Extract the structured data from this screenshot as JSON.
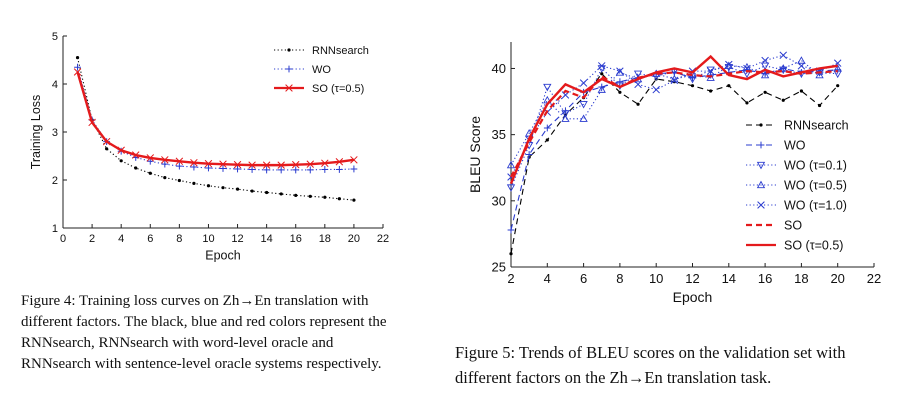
{
  "chart_data": [
    {
      "type": "line",
      "xlabel": "Epoch",
      "ylabel": "Training Loss",
      "xlim": [
        0,
        22
      ],
      "ylim": [
        1,
        5
      ],
      "xticks": [
        "0",
        "2",
        "4",
        "6",
        "8",
        "10",
        "12",
        "14",
        "16",
        "18",
        "20",
        "22"
      ],
      "yticks": [
        "1",
        "2",
        "3",
        "4",
        "5"
      ],
      "legend_position": "top-right",
      "x": [
        1,
        2,
        3,
        4,
        5,
        6,
        7,
        8,
        9,
        10,
        11,
        12,
        13,
        14,
        15,
        16,
        17,
        18,
        19,
        20
      ],
      "series": [
        {
          "name": "RNNsearch",
          "color": "#000000",
          "style": "dotted",
          "marker": "dot",
          "values": [
            4.55,
            3.25,
            2.65,
            2.4,
            2.25,
            2.14,
            2.05,
            1.99,
            1.93,
            1.88,
            1.84,
            1.81,
            1.77,
            1.74,
            1.71,
            1.68,
            1.66,
            1.64,
            1.61,
            1.58
          ]
        },
        {
          "name": "WO",
          "color": "#2b3ccf",
          "style": "dotted",
          "marker": "plus",
          "values": [
            4.35,
            3.25,
            2.8,
            2.6,
            2.47,
            2.39,
            2.33,
            2.29,
            2.27,
            2.25,
            2.24,
            2.23,
            2.22,
            2.21,
            2.21,
            2.21,
            2.21,
            2.22,
            2.22,
            2.23
          ]
        },
        {
          "name": "SO (τ=0.5)",
          "color": "#e41a1c",
          "style": "solid",
          "marker": "x",
          "values": [
            4.25,
            3.2,
            2.8,
            2.62,
            2.52,
            2.46,
            2.42,
            2.39,
            2.36,
            2.34,
            2.33,
            2.32,
            2.31,
            2.31,
            2.31,
            2.32,
            2.33,
            2.35,
            2.38,
            2.42
          ]
        }
      ]
    },
    {
      "type": "line",
      "xlabel": "Epoch",
      "ylabel": "BLEU Score",
      "xlim": [
        2,
        22
      ],
      "ylim": [
        25,
        42
      ],
      "xticks": [
        "2",
        "4",
        "6",
        "8",
        "10",
        "12",
        "14",
        "16",
        "18",
        "20",
        "22"
      ],
      "yticks": [
        "25",
        "30",
        "35",
        "40"
      ],
      "legend_position": "lower-right",
      "x": [
        2,
        3,
        4,
        5,
        6,
        7,
        8,
        9,
        10,
        11,
        12,
        13,
        14,
        15,
        16,
        17,
        18,
        19,
        20
      ],
      "series": [
        {
          "name": "RNNsearch",
          "color": "#000000",
          "style": "dashed",
          "marker": "dot",
          "values": [
            26.0,
            33.3,
            34.6,
            36.5,
            37.8,
            39.6,
            38.2,
            37.3,
            39.2,
            39.0,
            38.7,
            38.3,
            38.7,
            37.4,
            38.2,
            37.6,
            38.3,
            37.2,
            38.7
          ]
        },
        {
          "name": "WO",
          "color": "#2b3ccf",
          "style": "dashed",
          "marker": "plus",
          "values": [
            27.8,
            33.5,
            35.5,
            36.8,
            38.2,
            38.6,
            39.0,
            39.3,
            39.6,
            39.7,
            39.3,
            39.5,
            39.7,
            39.9,
            39.6,
            40.0,
            39.7,
            39.8,
            39.9
          ]
        },
        {
          "name": "WO (τ=0.1)",
          "color": "#2b3ccf",
          "style": "dotted",
          "marker": "triangle-down",
          "values": [
            31.0,
            34.2,
            38.6,
            36.6,
            37.3,
            40.0,
            38.7,
            39.6,
            39.4,
            39.8,
            39.2,
            39.9,
            40.1,
            39.6,
            40.2,
            39.9,
            39.6,
            39.7,
            39.6
          ]
        },
        {
          "name": "WO (τ=0.5)",
          "color": "#2b3ccf",
          "style": "dotted",
          "marker": "triangle-up",
          "values": [
            32.7,
            35.1,
            37.6,
            36.2,
            36.2,
            38.4,
            39.7,
            39.2,
            39.6,
            39.2,
            39.5,
            39.3,
            40.2,
            40.1,
            39.5,
            40.0,
            40.6,
            39.5,
            40.0
          ]
        },
        {
          "name": "WO (τ=1.0)",
          "color": "#2b3ccf",
          "style": "dotted",
          "marker": "x",
          "values": [
            31.8,
            34.6,
            36.7,
            38.0,
            38.9,
            40.2,
            39.8,
            38.8,
            38.4,
            39.1,
            39.8,
            39.8,
            40.3,
            40.0,
            40.6,
            41.0,
            40.2,
            39.8,
            40.4
          ]
        },
        {
          "name": "SO",
          "color": "#e41a1c",
          "style": "dashed",
          "marker": "none",
          "values": [
            31.8,
            34.4,
            36.8,
            38.3,
            37.8,
            39.4,
            38.6,
            39.3,
            39.6,
            39.7,
            39.5,
            39.4,
            39.6,
            39.8,
            39.7,
            39.8,
            39.6,
            39.7,
            39.8
          ]
        },
        {
          "name": "SO (τ=0.5)",
          "color": "#e41a1c",
          "style": "solid",
          "marker": "none",
          "values": [
            31.3,
            34.7,
            37.3,
            38.8,
            38.2,
            39.2,
            38.6,
            39.2,
            39.7,
            40.0,
            39.7,
            40.9,
            39.5,
            39.2,
            39.9,
            39.4,
            39.7,
            40.0,
            40.2
          ]
        }
      ]
    }
  ],
  "captions": {
    "fig4": "Figure 4: Training loss curves on Zh→En translation with different factors. The black, blue and red colors represent the RNNsearch, RNNsearch with word-level oracle and RNNsearch with sentence-level oracle systems respectively.",
    "fig5": "Figure 5: Trends of BLEU scores on the validation set with different factors on the Zh→En translation task."
  }
}
